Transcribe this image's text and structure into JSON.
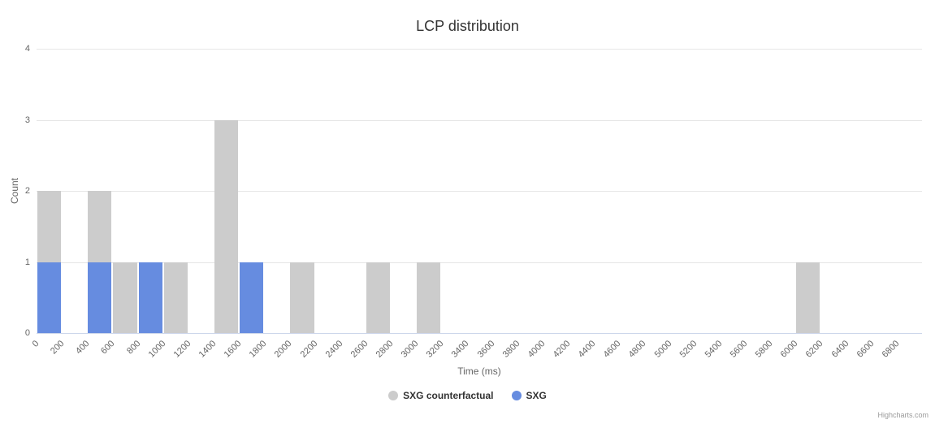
{
  "credits": "Highcharts.com",
  "chart_data": {
    "type": "bar",
    "title": "LCP distribution",
    "xlabel": "Time (ms)",
    "ylabel": "Count",
    "xlim": [
      0,
      7000
    ],
    "ylim": [
      0,
      4
    ],
    "bin_width": 200,
    "grid": true,
    "legend_position": "bottom-center",
    "x_ticks": [
      0,
      200,
      400,
      600,
      800,
      1000,
      1200,
      1400,
      1600,
      1800,
      2000,
      2200,
      2400,
      2600,
      2800,
      3000,
      3200,
      3400,
      3600,
      3800,
      4000,
      4200,
      4400,
      4600,
      4800,
      5000,
      5200,
      5400,
      5600,
      5800,
      6000,
      6200,
      6400,
      6600,
      6800
    ],
    "y_ticks": [
      0,
      1,
      2,
      3,
      4
    ],
    "series": [
      {
        "name": "SXG counterfactual",
        "color": "#cccccc",
        "points": [
          {
            "x": 0,
            "y": 2
          },
          {
            "x": 400,
            "y": 2
          },
          {
            "x": 600,
            "y": 1
          },
          {
            "x": 1000,
            "y": 1
          },
          {
            "x": 1400,
            "y": 3
          },
          {
            "x": 2000,
            "y": 1
          },
          {
            "x": 2600,
            "y": 1
          },
          {
            "x": 3000,
            "y": 1
          },
          {
            "x": 6000,
            "y": 1
          }
        ]
      },
      {
        "name": "SXG",
        "color": "#668ce0",
        "points": [
          {
            "x": 0,
            "y": 1
          },
          {
            "x": 400,
            "y": 1
          },
          {
            "x": 800,
            "y": 1
          },
          {
            "x": 1600,
            "y": 1
          }
        ]
      }
    ]
  }
}
